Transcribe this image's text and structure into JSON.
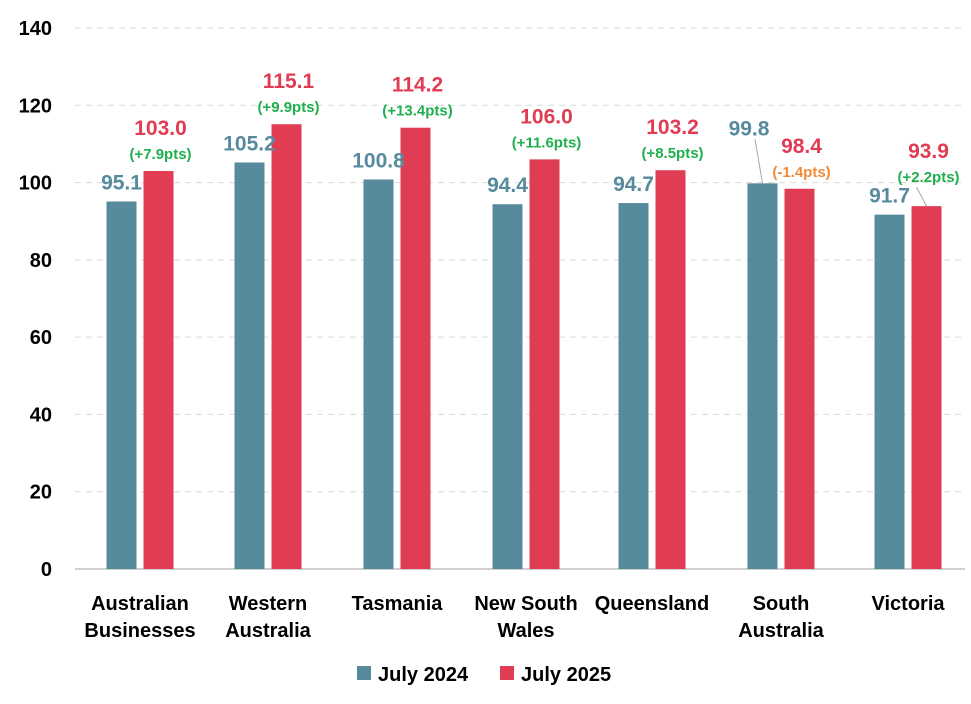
{
  "chart_data": {
    "type": "bar",
    "title": "",
    "xlabel": "",
    "ylabel": "",
    "ylim": [
      0,
      140
    ],
    "yticks": [
      0,
      20,
      40,
      60,
      80,
      100,
      120,
      140
    ],
    "grid": true,
    "legend_position": "bottom",
    "categories": [
      [
        "Australian",
        "Businesses"
      ],
      [
        "Western",
        "Australia"
      ],
      [
        "Tasmania"
      ],
      [
        "New South",
        "Wales"
      ],
      [
        "Queensland"
      ],
      [
        "South",
        "Australia"
      ],
      [
        "Victoria"
      ]
    ],
    "series": [
      {
        "name": "July 2024",
        "color": "#578A9C",
        "label_color": "#578A9C",
        "values": [
          95.1,
          105.2,
          100.8,
          94.4,
          94.7,
          99.8,
          91.7
        ],
        "labels": [
          "95.1",
          "105.2",
          "100.8",
          "94.4",
          "94.7",
          "99.8",
          "91.7"
        ]
      },
      {
        "name": "July 2025",
        "color": "#E03C53",
        "label_color": "#E03C53",
        "values": [
          103.0,
          115.1,
          114.2,
          106.0,
          103.2,
          98.4,
          93.9
        ],
        "labels": [
          "103.0",
          "115.1",
          "114.2",
          "106.0",
          "103.2",
          "98.4",
          "93.9"
        ]
      }
    ],
    "changes": [
      {
        "text": "(+7.9pts)",
        "color": "#1FAF4E"
      },
      {
        "text": "(+9.9pts)",
        "color": "#1FAF4E"
      },
      {
        "text": "(+13.4pts)",
        "color": "#1FAF4E"
      },
      {
        "text": "(+11.6pts)",
        "color": "#1FAF4E"
      },
      {
        "text": "(+8.5pts)",
        "color": "#1FAF4E"
      },
      {
        "text": "(-1.4pts)",
        "color": "#F08A3A"
      },
      {
        "text": "(+2.2pts)",
        "color": "#1FAF4E"
      }
    ]
  }
}
